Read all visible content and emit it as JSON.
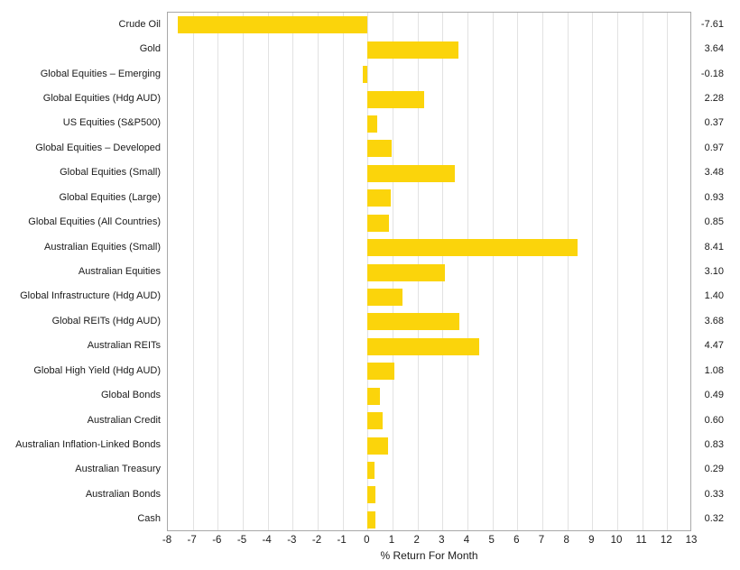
{
  "chart_data": {
    "type": "bar",
    "orientation": "horizontal",
    "title": "",
    "xlabel": "% Return For Month",
    "ylabel": "",
    "xlim": [
      -8,
      13
    ],
    "xticks": [
      -8,
      -7,
      -6,
      -5,
      -4,
      -3,
      -2,
      -1,
      0,
      1,
      2,
      3,
      4,
      5,
      6,
      7,
      8,
      9,
      10,
      11,
      12,
      13
    ],
    "grid": "vertical",
    "legend": "none",
    "categories": [
      "Crude Oil",
      "Gold",
      "Global Equities – Emerging",
      "Global Equities (Hdg AUD)",
      "US Equities (S&P500)",
      "Global Equities – Developed",
      "Global Equities (Small)",
      "Global Equities (Large)",
      "Global Equities (All Countries)",
      "Australian Equities (Small)",
      "Australian Equities",
      "Global Infrastructure (Hdg AUD)",
      "Global REITs (Hdg AUD)",
      "Australian REITs",
      "Global High Yield (Hdg AUD)",
      "Global Bonds",
      "Australian Credit",
      "Australian Inflation-Linked Bonds",
      "Australian Treasury",
      "Australian Bonds",
      "Cash"
    ],
    "values": [
      -7.61,
      3.64,
      -0.18,
      2.28,
      0.37,
      0.97,
      3.48,
      0.93,
      0.85,
      8.41,
      3.1,
      1.4,
      3.68,
      4.47,
      1.08,
      0.49,
      0.6,
      0.83,
      0.29,
      0.33,
      0.32
    ],
    "value_labels": [
      "-7.61",
      "3.64",
      "-0.18",
      "2.28",
      "0.37",
      "0.97",
      "3.48",
      "0.93",
      "0.85",
      "8.41",
      "3.10",
      "1.40",
      "3.68",
      "4.47",
      "1.08",
      "0.49",
      "0.60",
      "0.83",
      "0.29",
      "0.33",
      "0.32"
    ],
    "colors": {
      "bar": "#fbd40b",
      "grid": "#e2e2e2",
      "plot_border": "#a8a8a8",
      "text": "#1a1a1a",
      "background": "#ffffff"
    }
  }
}
